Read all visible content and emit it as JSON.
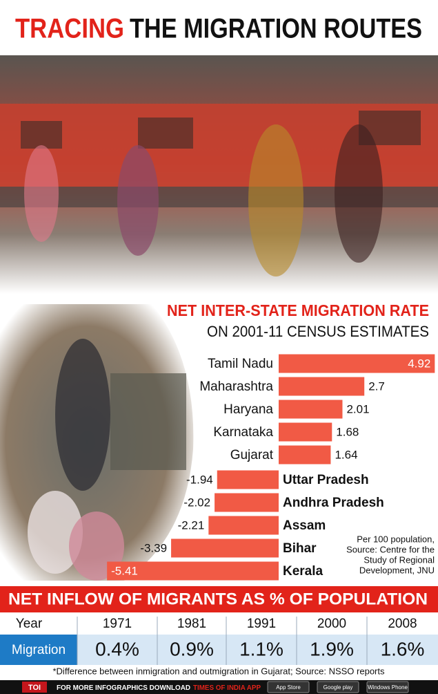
{
  "header": {
    "title_highlight": "TRACING",
    "title_rest": "THE MIGRATION ROUTES"
  },
  "chart_data": {
    "type": "bar",
    "orientation": "horizontal",
    "title": "NET INTER-STATE MIGRATION RATE",
    "subtitle": "ON 2001-11 CENSUS ESTIMATES",
    "categories": [
      "Tamil Nadu",
      "Maharashtra",
      "Haryana",
      "Karnataka",
      "Gujarat",
      "Uttar Pradesh",
      "Andhra Pradesh",
      "Assam",
      "Bihar",
      "Kerala"
    ],
    "values": [
      4.92,
      2.7,
      2.01,
      1.68,
      1.64,
      -1.94,
      -2.02,
      -2.21,
      -3.39,
      -5.41
    ],
    "color": "#f15a45",
    "note": [
      "Per 100 population,",
      "Source: Centre for the",
      "Study of Regional",
      "Development, JNU"
    ]
  },
  "table": {
    "title": "NET INFLOW OF MIGRANTS AS % OF POPULATION",
    "columns": [
      "Year",
      "1971",
      "1981",
      "1991",
      "2000",
      "2008"
    ],
    "rows": [
      [
        "Migration",
        "0.4%",
        "0.9%",
        "1.1%",
        "1.9%",
        "1.6%"
      ]
    ]
  },
  "footnote": "*Difference between inmigration and outmigration in Gujarat;  Source: NSSO reports",
  "footer": {
    "brand": "TOI",
    "text": "FOR MORE  INFOGRAPHICS DOWNLOAD",
    "app": "TIMES OF INDIA APP",
    "badges": [
      "App Store",
      "Google play",
      "Windows Phone"
    ]
  }
}
